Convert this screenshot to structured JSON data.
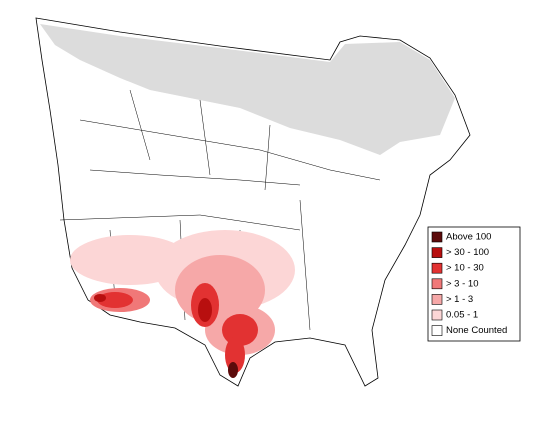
{
  "legend": {
    "items": [
      {
        "label": "Above 100",
        "color": "#5c0b0b"
      },
      {
        "label": "> 30 - 100",
        "color": "#b80f0f"
      },
      {
        "label": "> 10 - 30",
        "color": "#e23232"
      },
      {
        "label": "> 3 - 10",
        "color": "#f07878"
      },
      {
        "label": "> 1 - 3",
        "color": "#f6a8a8"
      },
      {
        "label": "0.05 - 1",
        "color": "#fcd6d6"
      },
      {
        "label": "None Counted",
        "color": "#ffffff"
      }
    ]
  }
}
